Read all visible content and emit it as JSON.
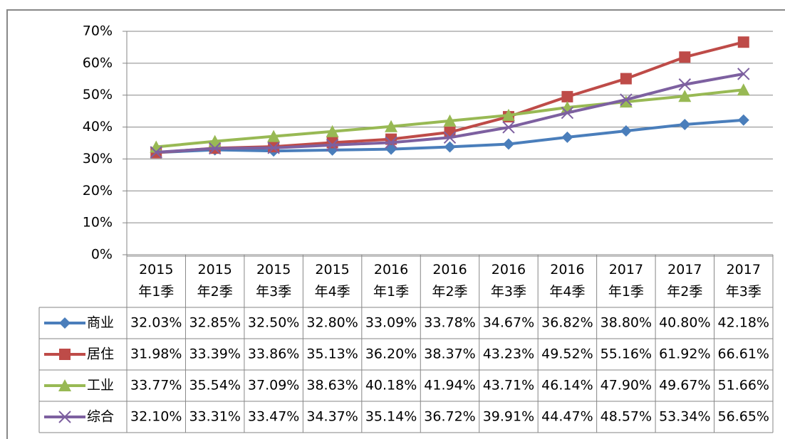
{
  "chart_data": {
    "type": "line",
    "categories": [
      "2015\n年1季",
      "2015\n年2季",
      "2015\n年3季",
      "2015\n年4季",
      "2016\n年1季",
      "2016\n年2季",
      "2016\n年3季",
      "2016\n年4季",
      "2017\n年1季",
      "2017\n年2季",
      "2017\n年3季"
    ],
    "series": [
      {
        "name": "商业",
        "color": "#4a7ebb",
        "marker": "diamond",
        "values": [
          32.03,
          32.85,
          32.5,
          32.8,
          33.09,
          33.78,
          34.67,
          36.82,
          38.8,
          40.8,
          42.18
        ],
        "value_labels": [
          "32.03%",
          "32.85%",
          "32.50%",
          "32.80%",
          "33.09%",
          "33.78%",
          "34.67%",
          "36.82%",
          "38.80%",
          "40.80%",
          "42.18%"
        ]
      },
      {
        "name": "居住",
        "color": "#be4b48",
        "marker": "square",
        "values": [
          31.98,
          33.39,
          33.86,
          35.13,
          36.2,
          38.37,
          43.23,
          49.52,
          55.16,
          61.92,
          66.61
        ],
        "value_labels": [
          "31.98%",
          "33.39%",
          "33.86%",
          "35.13%",
          "36.20%",
          "38.37%",
          "43.23%",
          "49.52%",
          "55.16%",
          "61.92%",
          "66.61%"
        ]
      },
      {
        "name": "工业",
        "color": "#98b954",
        "marker": "triangle",
        "values": [
          33.77,
          35.54,
          37.09,
          38.63,
          40.18,
          41.94,
          43.71,
          46.14,
          47.9,
          49.67,
          51.66
        ],
        "value_labels": [
          "33.77%",
          "35.54%",
          "37.09%",
          "38.63%",
          "40.18%",
          "41.94%",
          "43.71%",
          "46.14%",
          "47.90%",
          "49.67%",
          "51.66%"
        ]
      },
      {
        "name": "综合",
        "color": "#7d60a0",
        "marker": "x",
        "values": [
          32.1,
          33.31,
          33.47,
          34.37,
          35.14,
          36.72,
          39.91,
          44.47,
          48.57,
          53.34,
          56.65
        ],
        "value_labels": [
          "32.10%",
          "33.31%",
          "33.47%",
          "34.37%",
          "35.14%",
          "36.72%",
          "39.91%",
          "44.47%",
          "48.57%",
          "53.34%",
          "56.65%"
        ]
      }
    ],
    "ylim": [
      0,
      70
    ],
    "yticks": [
      {
        "value": 0,
        "label": "0%"
      },
      {
        "value": 10,
        "label": "10%"
      },
      {
        "value": 20,
        "label": "20%"
      },
      {
        "value": 30,
        "label": "30%"
      },
      {
        "value": 40,
        "label": "40%"
      },
      {
        "value": 50,
        "label": "50%"
      },
      {
        "value": 60,
        "label": "60%"
      },
      {
        "value": 70,
        "label": "70%"
      }
    ],
    "grid": true
  }
}
